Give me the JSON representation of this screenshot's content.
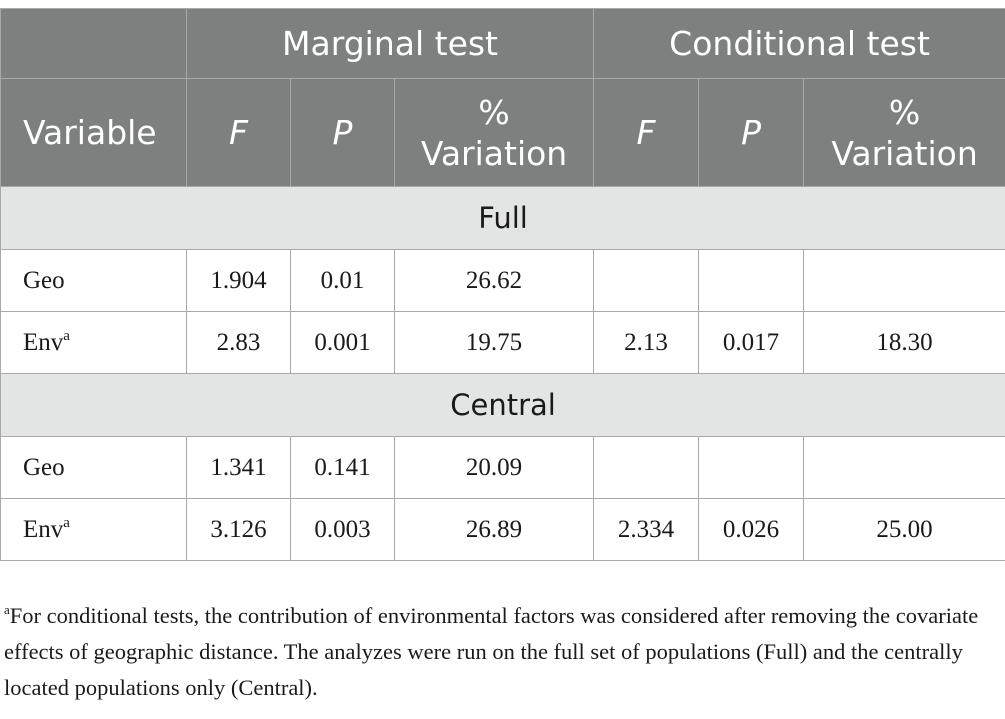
{
  "header": {
    "variable": "Variable",
    "groups": [
      "Marginal test",
      "Conditional test"
    ],
    "columns": [
      "F",
      "P",
      "%",
      "Variation"
    ]
  },
  "sections": [
    {
      "title": "Full",
      "rows": [
        {
          "variable": "Geo",
          "sup": "",
          "values": [
            "1.904",
            "0.01",
            "26.62",
            "",
            "",
            ""
          ]
        },
        {
          "variable": "Env",
          "sup": "a",
          "values": [
            "2.83",
            "0.001",
            "19.75",
            "2.13",
            "0.017",
            "18.30"
          ]
        }
      ]
    },
    {
      "title": "Central",
      "rows": [
        {
          "variable": "Geo",
          "sup": "",
          "values": [
            "1.341",
            "0.141",
            "20.09",
            "",
            "",
            ""
          ]
        },
        {
          "variable": "Env",
          "sup": "a",
          "values": [
            "3.126",
            "0.003",
            "26.89",
            "2.334",
            "0.026",
            "25.00"
          ]
        }
      ]
    }
  ],
  "footnote": {
    "marker": "a",
    "text": "For conditional tests, the contribution of environmental factors was considered after removing the covariate effects of geographic distance. The analyzes were run on the full set of populations (Full) and the centrally located populations only (Central)."
  }
}
